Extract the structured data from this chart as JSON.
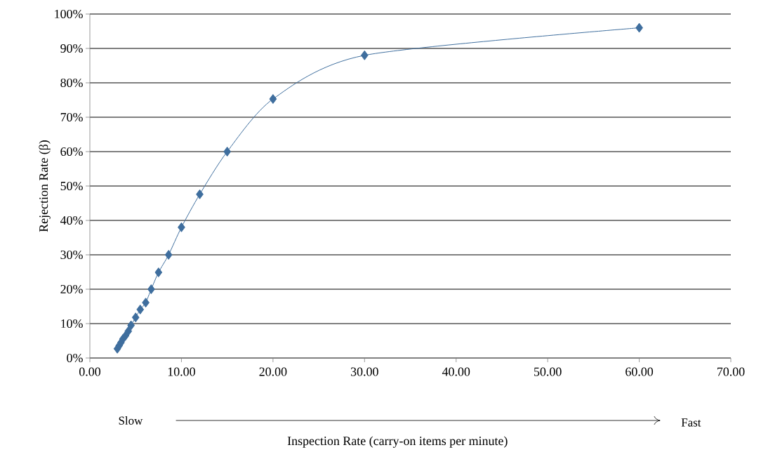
{
  "chart_data": {
    "type": "line",
    "xlabel": "Inspection Rate (carry-on items per minute)",
    "ylabel": "Rejection Rate (β)",
    "annotations": [
      "Slow",
      "Fast"
    ],
    "series": [
      {
        "color": "#3f6e9e",
        "x": [
          3.0,
          3.2,
          3.4,
          3.6,
          3.9,
          4.2,
          4.5,
          5.0,
          5.5,
          6.1,
          6.7,
          7.5,
          8.6,
          10.0,
          12.0,
          15.0,
          20.0,
          30.0,
          60.0
        ],
        "values": [
          2.7,
          3.6,
          4.5,
          5.5,
          6.5,
          7.8,
          9.5,
          11.8,
          14.1,
          16.1,
          20.0,
          24.9,
          30.0,
          38.0,
          47.6,
          60.0,
          75.3,
          88.0,
          96.0
        ]
      }
    ],
    "xlim": [
      0,
      70
    ],
    "ylim": [
      0,
      100
    ],
    "xticks": [
      {
        "value": 0,
        "label": "0.00"
      },
      {
        "value": 10,
        "label": "10.00"
      },
      {
        "value": 20,
        "label": "20.00"
      },
      {
        "value": 30,
        "label": "30.00"
      },
      {
        "value": 40,
        "label": "40.00"
      },
      {
        "value": 50,
        "label": "50.00"
      },
      {
        "value": 60,
        "label": "60.00"
      },
      {
        "value": 70,
        "label": "70.00"
      }
    ],
    "yticks": [
      {
        "value": 0,
        "label": "0%"
      },
      {
        "value": 10,
        "label": "10%"
      },
      {
        "value": 20,
        "label": "20%"
      },
      {
        "value": 30,
        "label": "30%"
      },
      {
        "value": 40,
        "label": "40%"
      },
      {
        "value": 50,
        "label": "50%"
      },
      {
        "value": 60,
        "label": "60%"
      },
      {
        "value": 70,
        "label": "70%"
      },
      {
        "value": 80,
        "label": "80%"
      },
      {
        "value": 90,
        "label": "90%"
      },
      {
        "value": 100,
        "label": "100%"
      }
    ],
    "grid": "y",
    "marker": "diamond",
    "line_style": "solid"
  }
}
